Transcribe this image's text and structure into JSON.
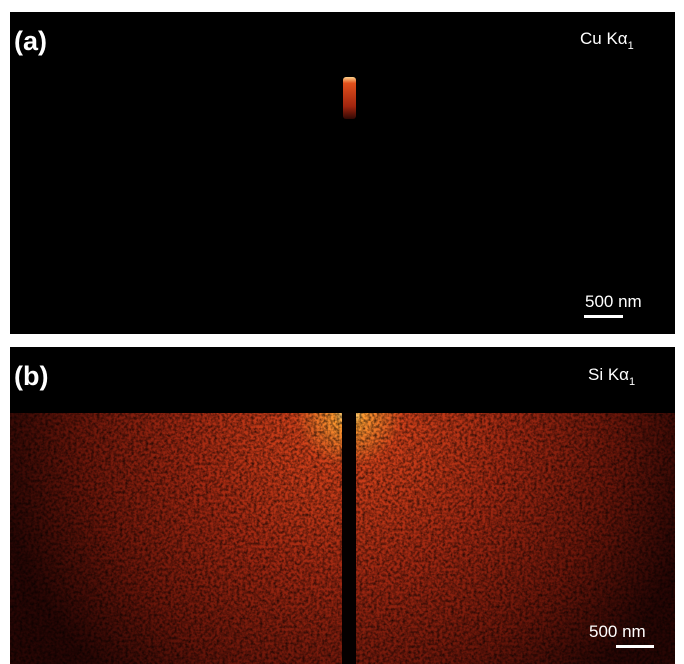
{
  "panels": [
    {
      "label": "(a)",
      "line": "Cu Kα",
      "line_subscript": "1",
      "scale_bar": "500 nm"
    },
    {
      "label": "(b)",
      "line": "Si Kα",
      "line_subscript": "1",
      "scale_bar": "500 nm"
    }
  ]
}
